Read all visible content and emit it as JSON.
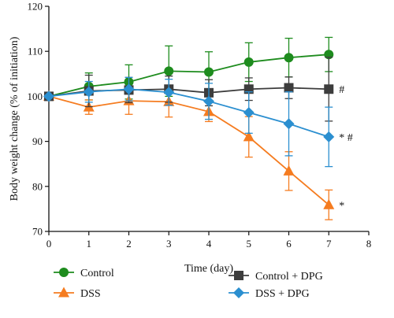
{
  "chart_data": {
    "type": "line",
    "title": "",
    "xlabel": "Time (day)",
    "ylabel": "Body weight change (% of initiation)",
    "xlim": [
      0,
      8
    ],
    "ylim": [
      70,
      120
    ],
    "xticks": [
      0,
      1,
      2,
      3,
      4,
      5,
      6,
      7,
      8
    ],
    "yticks": [
      70,
      80,
      90,
      100,
      110,
      120
    ],
    "grid": false,
    "legend_position": "bottom",
    "x": [
      0,
      1,
      2,
      3,
      4,
      5,
      6,
      7
    ],
    "series": [
      {
        "name": "Control",
        "color": "#1e8c1e",
        "marker": "circle",
        "values": [
          100,
          102.2,
          103.2,
          105.6,
          105.4,
          107.6,
          108.6,
          109.3
        ],
        "errors": [
          0,
          3.0,
          3.8,
          5.6,
          4.5,
          4.3,
          4.3,
          3.8
        ]
      },
      {
        "name": "DSS",
        "color": "#f57c20",
        "marker": "triangle",
        "values": [
          100,
          97.6,
          99.0,
          98.8,
          96.6,
          91.0,
          83.4,
          75.9
        ],
        "errors": [
          0,
          1.6,
          3.0,
          3.4,
          2.2,
          4.5,
          4.3,
          3.3
        ],
        "annotation": "*"
      },
      {
        "name": "Control + DPG",
        "color": "#3d3d3d",
        "marker": "square",
        "values": [
          100,
          101.2,
          101.4,
          101.6,
          100.8,
          101.6,
          101.9,
          101.6
        ],
        "errors": [
          0,
          3.5,
          2.8,
          2.9,
          2.9,
          2.5,
          2.4,
          7.1
        ],
        "annotation": "#"
      },
      {
        "name": "DSS + DPG",
        "color": "#2b8fd0",
        "marker": "diamond",
        "values": [
          100,
          101.0,
          101.6,
          100.9,
          98.9,
          96.4,
          93.9,
          91.0
        ],
        "errors": [
          0,
          2.3,
          2.6,
          2.9,
          4.0,
          4.6,
          7.1,
          6.6
        ],
        "annotation": "* #"
      }
    ]
  }
}
